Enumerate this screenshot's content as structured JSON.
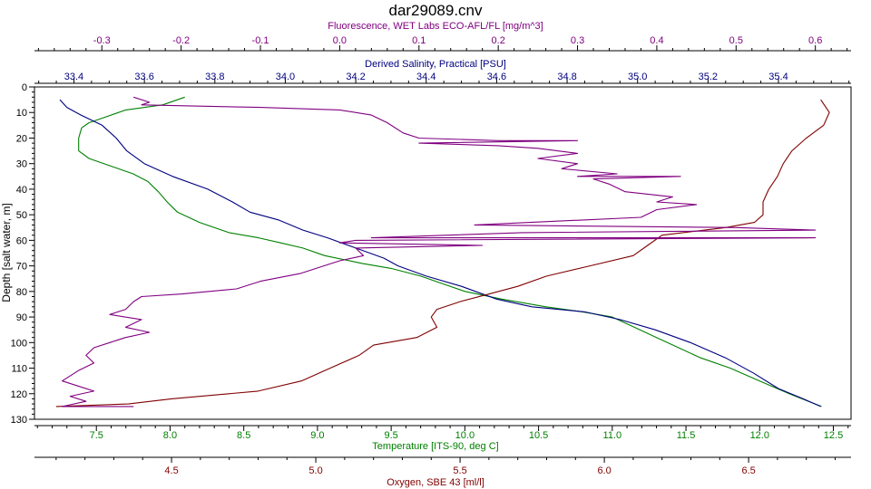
{
  "chart_data": {
    "type": "line",
    "title": "dar29089.cnv",
    "ylabel": "Depth [salt water, m]",
    "y_axis": {
      "range": [
        0,
        130
      ],
      "inverted": true,
      "ticks": [
        0,
        10,
        20,
        30,
        40,
        50,
        60,
        70,
        80,
        90,
        100,
        110,
        120,
        130
      ]
    },
    "grid": false,
    "legend": "none",
    "axes": [
      {
        "key": "fluorescence",
        "position": "top-outer",
        "label": "Fluorescence, WET Labs ECO-AFL/FL [mg/m^3]",
        "color": "#800080",
        "range": [
          -0.385,
          0.645
        ],
        "ticks": [
          -0.3,
          -0.2,
          -0.1,
          0.0,
          0.1,
          0.2,
          0.3,
          0.4,
          0.5,
          0.6
        ],
        "tick_labels": [
          "-0.3",
          "-0.2",
          "-0.1",
          "0.0",
          "0.1",
          "0.2",
          "0.3",
          "0.4",
          "0.5",
          "0.6"
        ],
        "minor": 0.02
      },
      {
        "key": "salinity",
        "position": "top-inner",
        "label": "Derived Salinity, Practical [PSU]",
        "color": "#000080",
        "range": [
          33.288,
          35.606
        ],
        "ticks": [
          33.4,
          33.6,
          33.8,
          34.0,
          34.2,
          34.4,
          34.6,
          34.8,
          35.0,
          35.2,
          35.4
        ],
        "tick_labels": [
          "33.4",
          "33.6",
          "33.8",
          "34.0",
          "34.2",
          "34.4",
          "34.6",
          "34.8",
          "35.0",
          "35.2",
          "35.4"
        ],
        "minor": 0.05
      },
      {
        "key": "temperature",
        "position": "bottom-inner",
        "label": "Temperature [ITS-90, deg C]",
        "color": "#008000",
        "range": [
          7.08,
          12.62
        ],
        "ticks": [
          7.5,
          8.0,
          8.5,
          9.0,
          9.5,
          10.0,
          10.5,
          11.0,
          11.5,
          12.0,
          12.5
        ],
        "tick_labels": [
          "7.5",
          "8.0",
          "8.5",
          "9.0",
          "9.5",
          "10.0",
          "10.5",
          "11.0",
          "11.5",
          "12.0",
          "12.5"
        ],
        "minor": 0.1
      },
      {
        "key": "oxygen",
        "position": "bottom-outer",
        "label": "Oxygen, SBE 43 [ml/l]",
        "color": "#800000",
        "range": [
          4.025,
          6.855
        ],
        "ticks": [
          4.5,
          5.0,
          5.5,
          6.0,
          6.5
        ],
        "tick_labels": [
          "4.5",
          "5.0",
          "5.5",
          "6.0",
          "6.5"
        ],
        "minor": 0.1
      }
    ],
    "series": [
      {
        "name": "Temperature [ITS-90, deg C]",
        "axis": "temperature",
        "color": "#008000",
        "points": [
          [
            8.1,
            4
          ],
          [
            7.95,
            7
          ],
          [
            7.7,
            9
          ],
          [
            7.55,
            12
          ],
          [
            7.45,
            14
          ],
          [
            7.4,
            16
          ],
          [
            7.38,
            20
          ],
          [
            7.38,
            25
          ],
          [
            7.45,
            28
          ],
          [
            7.6,
            31
          ],
          [
            7.75,
            34
          ],
          [
            7.85,
            37
          ],
          [
            7.92,
            41
          ],
          [
            7.98,
            45
          ],
          [
            8.05,
            49
          ],
          [
            8.2,
            53
          ],
          [
            8.4,
            57
          ],
          [
            8.6,
            59
          ],
          [
            8.75,
            61
          ],
          [
            8.9,
            63
          ],
          [
            9.05,
            66
          ],
          [
            9.3,
            69
          ],
          [
            9.5,
            71
          ],
          [
            9.7,
            74
          ],
          [
            9.85,
            77
          ],
          [
            10.0,
            80
          ],
          [
            10.25,
            83
          ],
          [
            10.55,
            86
          ],
          [
            10.8,
            88
          ],
          [
            11.0,
            90
          ],
          [
            11.15,
            94
          ],
          [
            11.3,
            98
          ],
          [
            11.45,
            102
          ],
          [
            11.6,
            106
          ],
          [
            11.8,
            110
          ],
          [
            12.0,
            115
          ],
          [
            12.2,
            120
          ],
          [
            12.42,
            125
          ]
        ]
      },
      {
        "name": "Derived Salinity, Practical [PSU]",
        "axis": "salinity",
        "color": "#000080",
        "points": [
          [
            33.36,
            5
          ],
          [
            33.38,
            8
          ],
          [
            33.42,
            11
          ],
          [
            33.48,
            15
          ],
          [
            33.52,
            20
          ],
          [
            33.55,
            25
          ],
          [
            33.6,
            30
          ],
          [
            33.68,
            35
          ],
          [
            33.78,
            40
          ],
          [
            33.85,
            45
          ],
          [
            33.9,
            49
          ],
          [
            33.98,
            52
          ],
          [
            34.05,
            56
          ],
          [
            34.12,
            59
          ],
          [
            34.2,
            63
          ],
          [
            34.28,
            67
          ],
          [
            34.32,
            70
          ],
          [
            34.4,
            74
          ],
          [
            34.5,
            78
          ],
          [
            34.6,
            83
          ],
          [
            34.7,
            86
          ],
          [
            34.85,
            88
          ],
          [
            34.95,
            91
          ],
          [
            35.05,
            95
          ],
          [
            35.15,
            100
          ],
          [
            35.25,
            106
          ],
          [
            35.33,
            112
          ],
          [
            35.4,
            118
          ],
          [
            35.47,
            122
          ],
          [
            35.52,
            125
          ]
        ]
      },
      {
        "name": "Oxygen, SBE 43 [ml/l]",
        "axis": "oxygen",
        "color": "#800000",
        "points": [
          [
            6.75,
            5
          ],
          [
            6.78,
            10
          ],
          [
            6.76,
            15
          ],
          [
            6.7,
            20
          ],
          [
            6.65,
            25
          ],
          [
            6.62,
            30
          ],
          [
            6.6,
            35
          ],
          [
            6.57,
            40
          ],
          [
            6.55,
            45
          ],
          [
            6.55,
            50
          ],
          [
            6.52,
            53
          ],
          [
            6.42,
            55
          ],
          [
            6.2,
            58
          ],
          [
            6.15,
            62
          ],
          [
            6.1,
            66
          ],
          [
            5.95,
            70
          ],
          [
            5.8,
            74
          ],
          [
            5.7,
            78
          ],
          [
            5.6,
            81
          ],
          [
            5.5,
            84
          ],
          [
            5.42,
            87
          ],
          [
            5.4,
            90
          ],
          [
            5.42,
            94
          ],
          [
            5.35,
            98
          ],
          [
            5.2,
            101
          ],
          [
            5.15,
            105
          ],
          [
            5.05,
            110
          ],
          [
            4.95,
            115
          ],
          [
            4.8,
            119
          ],
          [
            4.5,
            122
          ],
          [
            4.35,
            124
          ],
          [
            4.1,
            125
          ]
        ]
      },
      {
        "name": "Fluorescence, WET Labs ECO-AFL/FL [mg/m^3]",
        "axis": "fluorescence",
        "color": "#800080",
        "points": [
          [
            -0.26,
            4
          ],
          [
            -0.24,
            6
          ],
          [
            -0.25,
            7
          ],
          [
            -0.1,
            8
          ],
          [
            0.0,
            9
          ],
          [
            0.04,
            11
          ],
          [
            0.06,
            14
          ],
          [
            0.08,
            18
          ],
          [
            0.1,
            20
          ],
          [
            0.2,
            21
          ],
          [
            0.3,
            21
          ],
          [
            0.1,
            22
          ],
          [
            0.2,
            23
          ],
          [
            0.25,
            24
          ],
          [
            0.3,
            26
          ],
          [
            0.25,
            28
          ],
          [
            0.3,
            30
          ],
          [
            0.28,
            32
          ],
          [
            0.35,
            34
          ],
          [
            0.3,
            35
          ],
          [
            0.43,
            35
          ],
          [
            0.32,
            36
          ],
          [
            0.34,
            38
          ],
          [
            0.36,
            41
          ],
          [
            0.42,
            43
          ],
          [
            0.4,
            45
          ],
          [
            0.45,
            46
          ],
          [
            0.4,
            48
          ],
          [
            0.38,
            51
          ],
          [
            0.24,
            53
          ],
          [
            0.17,
            54
          ],
          [
            0.5,
            55
          ],
          [
            0.6,
            56
          ],
          [
            0.23,
            57
          ],
          [
            0.04,
            59
          ],
          [
            0.6,
            59
          ],
          [
            0.02,
            60
          ],
          [
            0.0,
            61
          ],
          [
            0.18,
            62
          ],
          [
            0.02,
            63
          ],
          [
            0.03,
            66
          ],
          [
            0.0,
            68
          ],
          [
            -0.02,
            70
          ],
          [
            -0.05,
            73
          ],
          [
            -0.1,
            76
          ],
          [
            -0.13,
            79
          ],
          [
            -0.2,
            81
          ],
          [
            -0.25,
            82
          ],
          [
            -0.26,
            84
          ],
          [
            -0.27,
            87
          ],
          [
            -0.29,
            89
          ],
          [
            -0.25,
            91
          ],
          [
            -0.27,
            94
          ],
          [
            -0.24,
            96
          ],
          [
            -0.27,
            98
          ],
          [
            -0.29,
            100
          ],
          [
            -0.31,
            102
          ],
          [
            -0.32,
            105
          ],
          [
            -0.31,
            108
          ],
          [
            -0.33,
            111
          ],
          [
            -0.35,
            115
          ],
          [
            -0.33,
            117
          ],
          [
            -0.31,
            119
          ],
          [
            -0.34,
            121
          ],
          [
            -0.32,
            123
          ],
          [
            -0.35,
            125
          ],
          [
            -0.26,
            125
          ]
        ]
      }
    ]
  }
}
